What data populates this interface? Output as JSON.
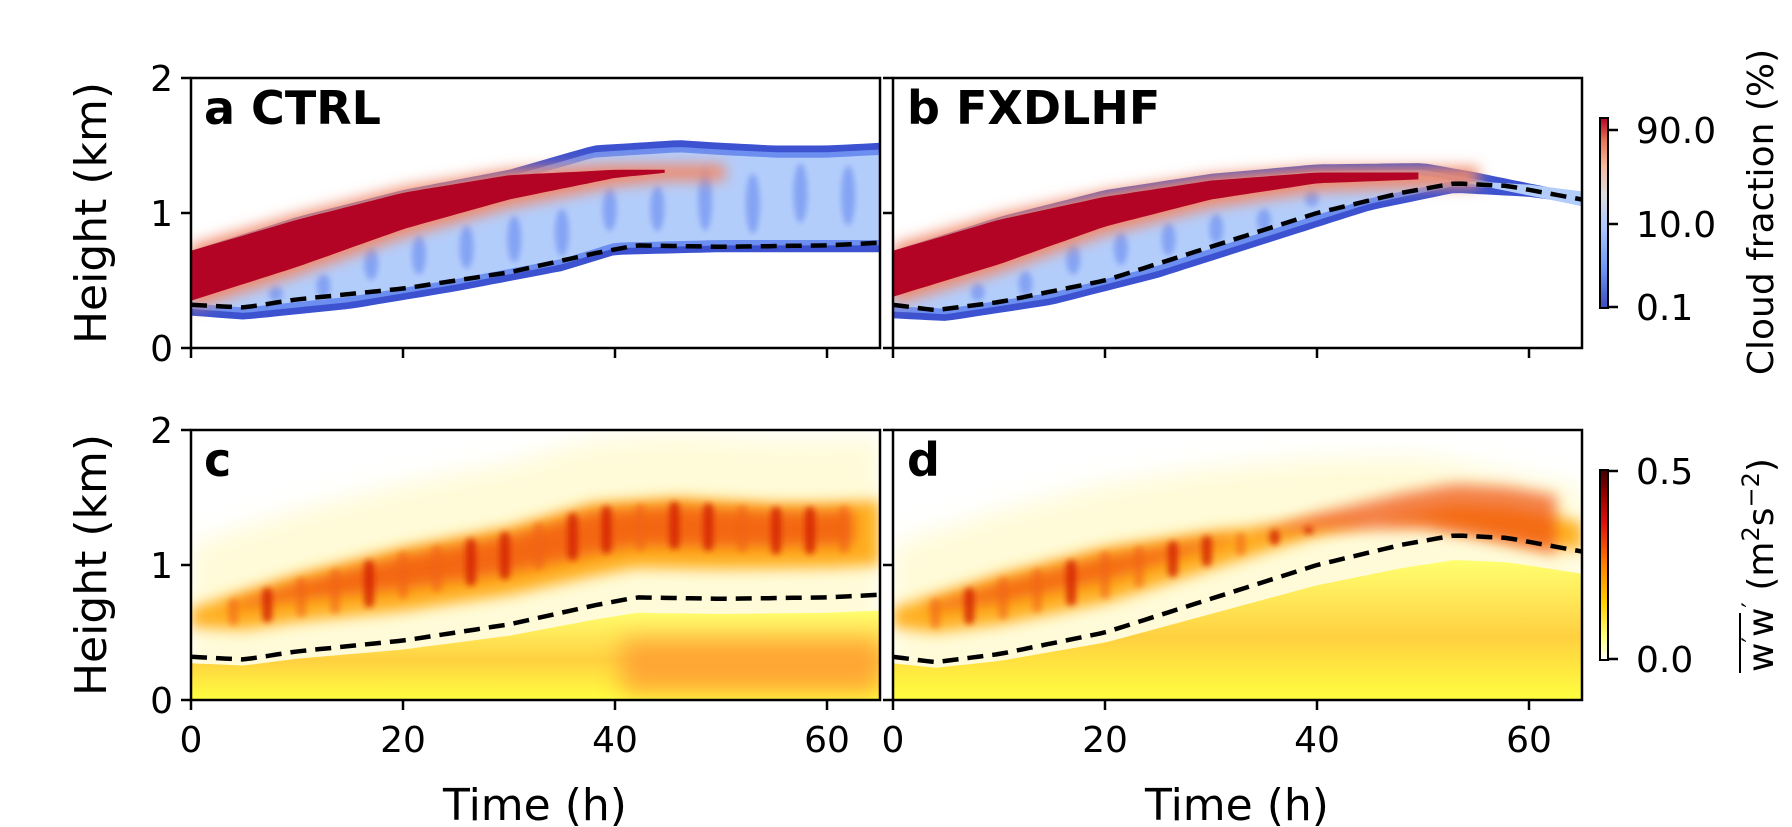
{
  "chart_data": [
    {
      "type": "heatmap",
      "panel": "a CTRL",
      "field": "cloud_fraction",
      "xlabel": "",
      "ylabel": "Height (km)",
      "xlim": [
        0,
        65
      ],
      "ylim": [
        0,
        2
      ],
      "xticks": [
        "",
        "",
        "",
        ""
      ],
      "yticks": [
        "0",
        "1",
        "2"
      ],
      "cloud_top_km": {
        "x": [
          0,
          10,
          20,
          30,
          38,
          42,
          46,
          50,
          55,
          60,
          65
        ],
        "y": [
          0.7,
          0.95,
          1.15,
          1.3,
          1.48,
          1.5,
          1.52,
          1.5,
          1.48,
          1.48,
          1.5
        ]
      },
      "cloud_base_km": {
        "x": [
          0,
          5,
          15,
          25,
          35,
          40,
          50,
          65
        ],
        "y": [
          0.27,
          0.24,
          0.32,
          0.45,
          0.6,
          0.72,
          0.74,
          0.74
        ]
      },
      "dense_core_top_km": {
        "x": [
          0,
          10,
          20,
          30,
          40,
          45
        ],
        "y": [
          0.72,
          0.95,
          1.15,
          1.28,
          1.32,
          1.32
        ]
      },
      "dense_core_bottom_km": {
        "x": [
          0,
          10,
          20,
          30,
          40,
          45
        ],
        "y": [
          0.35,
          0.6,
          0.88,
          1.1,
          1.26,
          1.3
        ]
      },
      "pbl_height_km": {
        "x": [
          0,
          5,
          10,
          20,
          30,
          38,
          42,
          50,
          60,
          65
        ],
        "y": [
          0.32,
          0.3,
          0.36,
          0.44,
          0.56,
          0.7,
          0.76,
          0.75,
          0.76,
          0.78
        ]
      }
    },
    {
      "type": "heatmap",
      "panel": "b FXDLHF",
      "field": "cloud_fraction",
      "xlabel": "",
      "ylabel": "",
      "xlim": [
        0,
        65
      ],
      "ylim": [
        0,
        2
      ],
      "xticks": [
        "",
        "",
        "",
        ""
      ],
      "cloud_top_km": {
        "x": [
          0,
          10,
          20,
          30,
          40,
          50,
          55,
          60,
          65
        ],
        "y": [
          0.7,
          0.95,
          1.15,
          1.27,
          1.34,
          1.35,
          1.28,
          1.2,
          1.12
        ]
      },
      "cloud_base_km": {
        "x": [
          0,
          5,
          15,
          25,
          35,
          45,
          53,
          60,
          65
        ],
        "y": [
          0.25,
          0.23,
          0.35,
          0.55,
          0.8,
          1.05,
          1.18,
          1.15,
          1.1
        ]
      },
      "dense_core_top_km": {
        "x": [
          0,
          10,
          20,
          30,
          40,
          50
        ],
        "y": [
          0.72,
          0.95,
          1.12,
          1.24,
          1.3,
          1.3
        ]
      },
      "dense_core_bottom_km": {
        "x": [
          0,
          10,
          20,
          30,
          40,
          50
        ],
        "y": [
          0.38,
          0.62,
          0.9,
          1.1,
          1.22,
          1.25
        ]
      },
      "pbl_height_km": {
        "x": [
          0,
          4,
          10,
          20,
          30,
          40,
          48,
          53,
          58,
          65
        ],
        "y": [
          0.32,
          0.28,
          0.34,
          0.5,
          0.75,
          1.0,
          1.15,
          1.22,
          1.2,
          1.1
        ]
      }
    },
    {
      "type": "heatmap",
      "panel": "c",
      "field": "w_variance",
      "xlabel": "Time (h)",
      "ylabel": "Height (km)",
      "xlim": [
        0,
        65
      ],
      "ylim": [
        0,
        2
      ],
      "xticks": [
        "0",
        "20",
        "40",
        "60"
      ],
      "yticks": [
        "0",
        "1",
        "2"
      ],
      "pbl_height_km": {
        "x": [
          0,
          5,
          10,
          20,
          30,
          38,
          42,
          50,
          60,
          65
        ],
        "y": [
          0.32,
          0.3,
          0.36,
          0.44,
          0.56,
          0.7,
          0.76,
          0.75,
          0.76,
          0.78
        ]
      }
    },
    {
      "type": "heatmap",
      "panel": "d",
      "field": "w_variance",
      "xlabel": "Time (h)",
      "ylabel": "",
      "xlim": [
        0,
        65
      ],
      "ylim": [
        0,
        2
      ],
      "xticks": [
        "0",
        "20",
        "40",
        "60"
      ],
      "pbl_height_km": {
        "x": [
          0,
          4,
          10,
          20,
          30,
          40,
          48,
          53,
          58,
          65
        ],
        "y": [
          0.32,
          0.28,
          0.34,
          0.5,
          0.75,
          1.0,
          1.15,
          1.22,
          1.2,
          1.1
        ]
      }
    }
  ],
  "colorbars": {
    "cloud": {
      "label": "Cloud fraction (%)",
      "scale": "log",
      "ticks": [
        "90.0",
        "10.0",
        "0.1"
      ],
      "colors": [
        "#3b4cc0",
        "#6f92f3",
        "#aac7fd",
        "#dddddd",
        "#f7b89c",
        "#e7745b",
        "#b40426"
      ]
    },
    "wvar": {
      "label": "w'w' (m²s⁻²)",
      "label_main": "w",
      "label_main2": "w",
      "label_prime": "′",
      "label_units": "(m",
      "label_units_sup": "2",
      "label_units_s": "s",
      "label_units_sup2": "−2",
      "label_units_end": ")",
      "ticks": [
        "0.5",
        "0.0"
      ],
      "colors": [
        "#ffffff",
        "#ffff80",
        "#ffd000",
        "#ff8000",
        "#e01010",
        "#900000",
        "#400000"
      ]
    }
  }
}
